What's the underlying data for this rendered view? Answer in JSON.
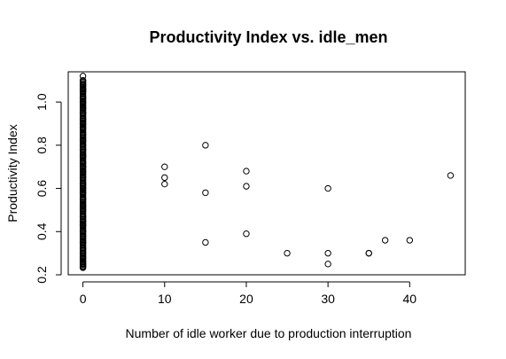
{
  "chart_data": {
    "type": "scatter",
    "title": "Productivity Index vs. idle_men",
    "xlabel": "Number of idle worker due to production interruption",
    "ylabel": "Productivity Index",
    "xlim": [
      -1.8,
      46.8
    ],
    "ylim": [
      0.2,
      1.14
    ],
    "x_ticks": [
      0,
      10,
      20,
      30,
      40
    ],
    "y_ticks": [
      0.2,
      0.4,
      0.6,
      0.8,
      1.0
    ],
    "x_tick_labels": [
      "0",
      "10",
      "20",
      "30",
      "40"
    ],
    "y_tick_labels": [
      "0.2",
      "0.4",
      "0.6",
      "0.8",
      "1.0"
    ],
    "grid": false,
    "legend": "none",
    "points": [
      [
        0,
        0.233
      ],
      [
        0,
        0.24
      ],
      [
        0,
        0.25
      ],
      [
        0,
        0.26
      ],
      [
        0,
        0.28
      ],
      [
        0,
        0.3
      ],
      [
        0,
        0.32
      ],
      [
        0,
        0.35
      ],
      [
        0,
        0.38
      ],
      [
        0,
        0.4
      ],
      [
        0,
        0.43
      ],
      [
        0,
        0.45
      ],
      [
        0,
        0.47
      ],
      [
        0,
        0.5
      ],
      [
        0,
        0.52
      ],
      [
        0,
        0.55
      ],
      [
        0,
        0.58
      ],
      [
        0,
        0.6
      ],
      [
        0,
        0.62
      ],
      [
        0,
        0.65
      ],
      [
        0,
        0.68
      ],
      [
        0,
        0.7
      ],
      [
        0,
        0.72
      ],
      [
        0,
        0.75
      ],
      [
        0,
        0.78
      ],
      [
        0,
        0.8
      ],
      [
        0,
        0.82
      ],
      [
        0,
        0.85
      ],
      [
        0,
        0.88
      ],
      [
        0,
        0.9
      ],
      [
        0,
        0.92
      ],
      [
        0,
        0.95
      ],
      [
        0,
        0.97
      ],
      [
        0,
        1.0
      ],
      [
        0,
        1.02
      ],
      [
        0,
        1.05
      ],
      [
        0,
        1.06
      ],
      [
        0,
        1.08
      ],
      [
        0,
        1.1
      ],
      [
        0,
        1.12
      ],
      [
        10,
        0.7
      ],
      [
        10,
        0.65
      ],
      [
        10,
        0.62
      ],
      [
        15,
        0.8
      ],
      [
        15,
        0.58
      ],
      [
        15,
        0.35
      ],
      [
        20,
        0.68
      ],
      [
        20,
        0.61
      ],
      [
        20,
        0.39
      ],
      [
        25,
        0.3
      ],
      [
        30,
        0.6
      ],
      [
        30,
        0.3
      ],
      [
        30,
        0.25
      ],
      [
        35,
        0.3
      ],
      [
        35,
        0.3
      ],
      [
        37,
        0.36
      ],
      [
        40,
        0.36
      ],
      [
        45,
        0.66
      ]
    ]
  }
}
